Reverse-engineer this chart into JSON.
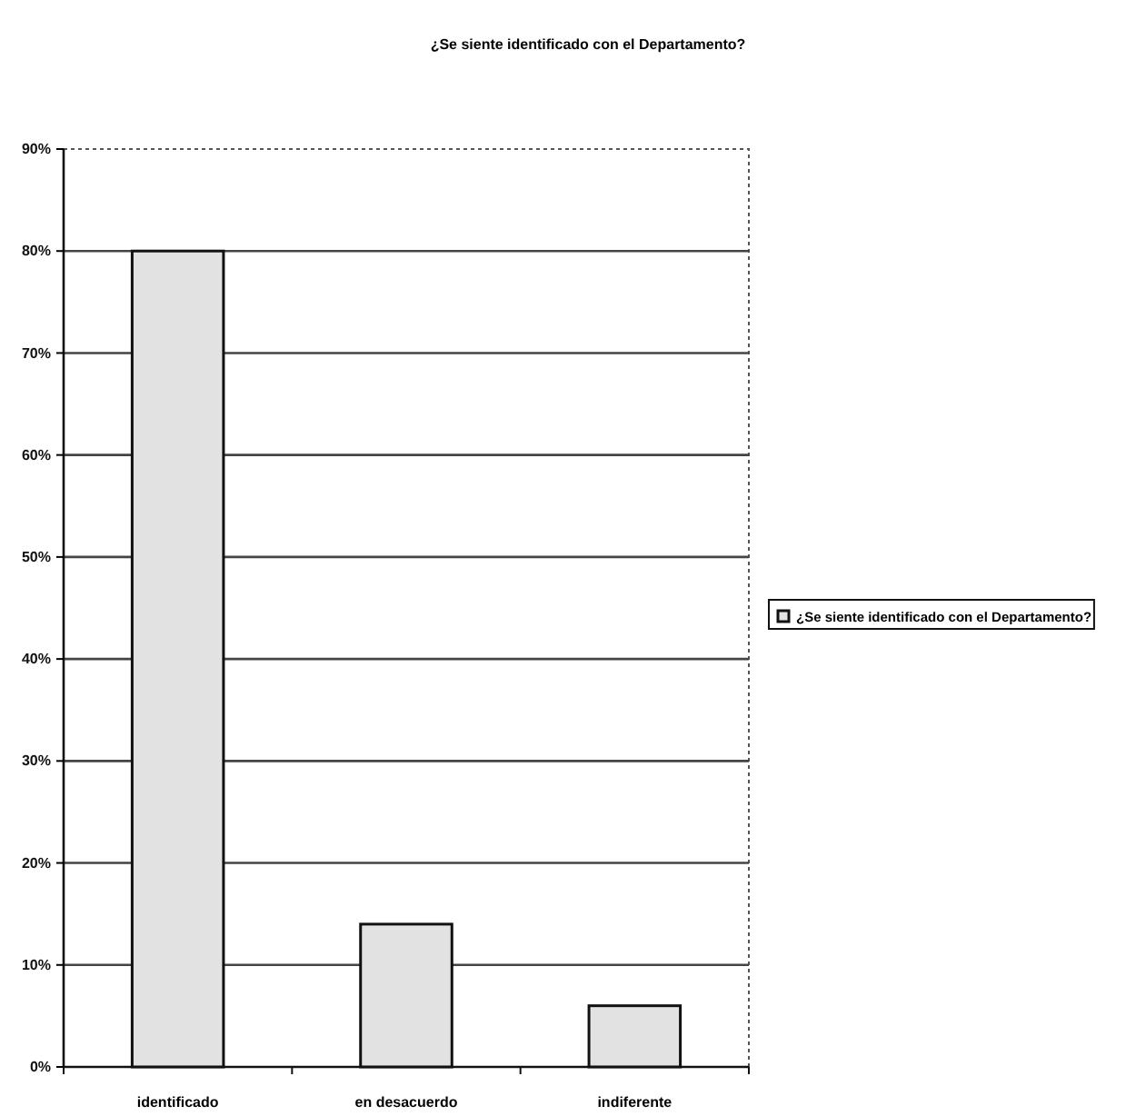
{
  "chart_data": {
    "type": "bar",
    "title": "¿Se siente identificado con el Departamento?",
    "categories": [
      "identificado",
      "en desacuerdo",
      "indiferente"
    ],
    "series": [
      {
        "name": "¿Se siente identificado con el Departamento?",
        "color": "#e2e2e2",
        "values": [
          80,
          14,
          6
        ]
      }
    ],
    "ylim": [
      0,
      90
    ],
    "yticks": [
      {
        "value": 0,
        "label": "0%"
      },
      {
        "value": 10,
        "label": "10%"
      },
      {
        "value": 20,
        "label": "20%"
      },
      {
        "value": 30,
        "label": "30%"
      },
      {
        "value": 40,
        "label": "40%"
      },
      {
        "value": 50,
        "label": "50%"
      },
      {
        "value": 60,
        "label": "60%"
      },
      {
        "value": 70,
        "label": "70%"
      },
      {
        "value": 80,
        "label": "80%"
      },
      {
        "value": 90,
        "label": "90%"
      }
    ],
    "grid": "y",
    "legend": "right"
  }
}
